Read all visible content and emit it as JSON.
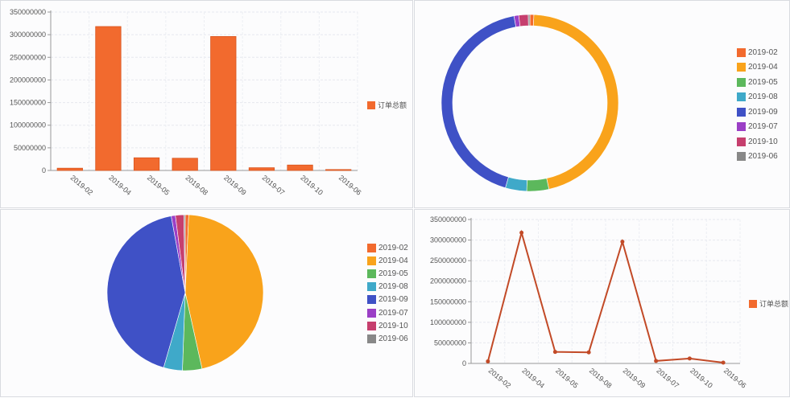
{
  "chart_data": [
    {
      "type": "bar",
      "categories": [
        "2019-02",
        "2019-04",
        "2019-05",
        "2019-08",
        "2019-09",
        "2019-07",
        "2019-10",
        "2019-06"
      ],
      "series": [
        {
          "name": "订单总额",
          "values": [
            5000000,
            318000000,
            28000000,
            27000000,
            296000000,
            6000000,
            12000000,
            2000000
          ]
        }
      ],
      "yticks": [
        "0",
        "50000000",
        "100000000",
        "150000000",
        "200000000",
        "250000000",
        "300000000",
        "350000000"
      ],
      "ylim": [
        0,
        350000000
      ],
      "grid": true,
      "legend_position": "right",
      "color": "#f26a2e"
    },
    {
      "type": "pie",
      "variant": "donut",
      "labels": [
        "2019-02",
        "2019-04",
        "2019-05",
        "2019-08",
        "2019-09",
        "2019-07",
        "2019-10",
        "2019-06"
      ],
      "values": [
        5000000,
        318000000,
        28000000,
        27000000,
        296000000,
        6000000,
        12000000,
        2000000
      ],
      "colors": [
        "#f26a2e",
        "#f9a31b",
        "#5cb85c",
        "#3fa9c9",
        "#3f51c6",
        "#9b3fc6",
        "#c63f6e",
        "#888888"
      ],
      "legend_position": "right"
    },
    {
      "type": "pie",
      "labels": [
        "2019-02",
        "2019-04",
        "2019-05",
        "2019-08",
        "2019-09",
        "2019-07",
        "2019-10",
        "2019-06"
      ],
      "values": [
        5000000,
        318000000,
        28000000,
        27000000,
        296000000,
        6000000,
        12000000,
        2000000
      ],
      "colors": [
        "#f26a2e",
        "#f9a31b",
        "#5cb85c",
        "#3fa9c9",
        "#3f51c6",
        "#9b3fc6",
        "#c63f6e",
        "#888888"
      ],
      "legend_position": "right"
    },
    {
      "type": "line",
      "categories": [
        "2019-02",
        "2019-04",
        "2019-05",
        "2019-08",
        "2019-09",
        "2019-07",
        "2019-10",
        "2019-06"
      ],
      "series": [
        {
          "name": "订单总额",
          "values": [
            5000000,
            318000000,
            28000000,
            27000000,
            296000000,
            6000000,
            12000000,
            2000000
          ]
        }
      ],
      "yticks": [
        "0",
        "50000000",
        "100000000",
        "150000000",
        "200000000",
        "250000000",
        "300000000",
        "350000000"
      ],
      "ylim": [
        0,
        350000000
      ],
      "grid": true,
      "legend_position": "right",
      "color": "#c24a27"
    }
  ]
}
